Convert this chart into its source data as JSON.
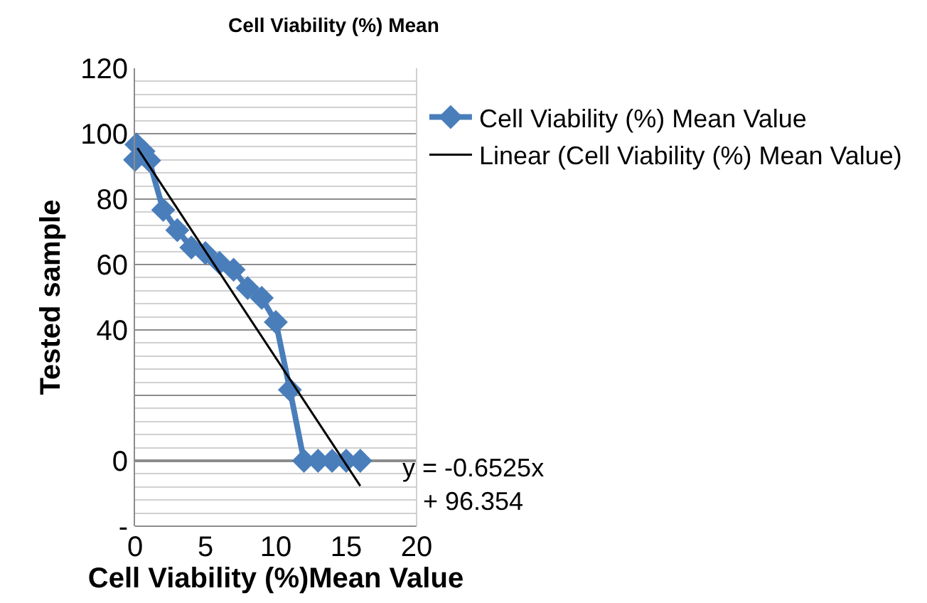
{
  "chart_data": {
    "type": "line",
    "title": "Cell Viability (%) Mean",
    "xlabel": "Cell Viability (%)Mean Value",
    "ylabel": "Tested sample",
    "series": [
      {
        "name": "Cell Viability (%) Mean Value",
        "color": "#4a7ebb",
        "x": [
          0,
          0.1,
          0.6,
          1,
          2,
          3,
          4,
          5,
          6,
          7,
          8,
          9,
          10,
          11,
          12,
          13,
          14,
          15,
          16
        ],
        "values": [
          92,
          96.7,
          94.6,
          91.8,
          76.7,
          70.5,
          65.2,
          63.5,
          60.5,
          58.4,
          52.8,
          49.8,
          42.4,
          21.7,
          0,
          0,
          0,
          0,
          0
        ],
        "marker": "diamond"
      },
      {
        "name": "Linear (Cell Viability (%) Mean Value)",
        "color": "#000000",
        "x": [
          0.17,
          16
        ],
        "values": [
          95.6,
          -7.7
        ],
        "marker": "none"
      }
    ],
    "xlim": [
      0,
      20
    ],
    "xticks": [
      0,
      5,
      10,
      15,
      20
    ],
    "ylim": [
      -20,
      120
    ],
    "yticks": [
      {
        "value": -20,
        "label": "-"
      },
      0,
      {
        "value": 20,
        "label": null
      },
      40,
      60,
      80,
      100,
      120
    ],
    "grid": "y",
    "legend": "right",
    "line_style": "solid",
    "annotations": [
      "y = -0.6525x + 96.354"
    ]
  }
}
